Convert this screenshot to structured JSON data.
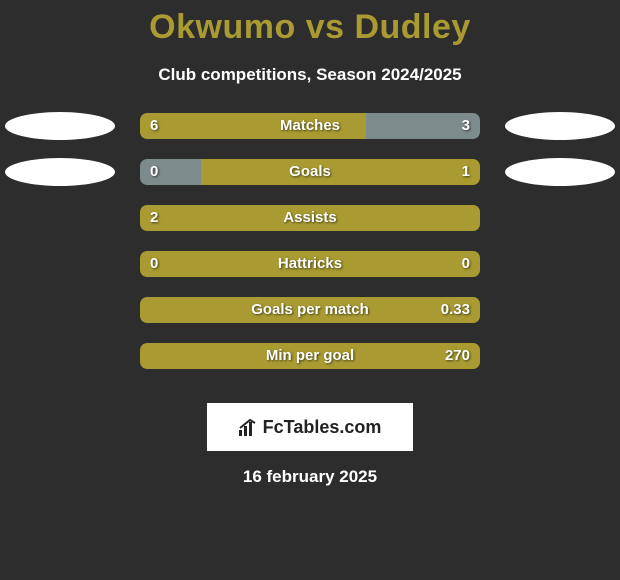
{
  "title_left": "Okwumo",
  "title_vs": "vs",
  "title_right": "Dudley",
  "subtitle": "Club competitions, Season 2024/2025",
  "date": "16 february 2025",
  "logo_text_bold": "Fc",
  "logo_text_rest": "Tables.com",
  "colors": {
    "title": "#a99b31",
    "bar_left_default": "#a99b31",
    "bar_right_default": "#7c8b8c",
    "bar_full": "#a99b31",
    "oval": "#ffffff",
    "background": "#2d2d2d",
    "text": "#ffffff"
  },
  "rows": [
    {
      "label": "Matches",
      "left_val": "6",
      "right_val": "3",
      "left_pct": 66.6,
      "right_pct": 33.4,
      "left_color": "#a99b31",
      "right_color": "#7c8b8c",
      "show_ovals": true
    },
    {
      "label": "Goals",
      "left_val": "0",
      "right_val": "1",
      "left_pct": 18,
      "right_pct": 82,
      "left_color": "#7c8b8c",
      "right_color": "#a99b31",
      "show_ovals": true
    },
    {
      "label": "Assists",
      "left_val": "2",
      "right_val": "",
      "left_pct": 100,
      "right_pct": 0,
      "left_color": "#a99b31",
      "right_color": "#a99b31",
      "show_ovals": false
    },
    {
      "label": "Hattricks",
      "left_val": "0",
      "right_val": "0",
      "left_pct": 100,
      "right_pct": 0,
      "left_color": "#a99b31",
      "right_color": "#a99b31",
      "show_ovals": false
    },
    {
      "label": "Goals per match",
      "left_val": "",
      "right_val": "0.33",
      "left_pct": 100,
      "right_pct": 0,
      "left_color": "#a99b31",
      "right_color": "#a99b31",
      "show_ovals": false
    },
    {
      "label": "Min per goal",
      "left_val": "",
      "right_val": "270",
      "left_pct": 100,
      "right_pct": 0,
      "left_color": "#a99b31",
      "right_color": "#a99b31",
      "show_ovals": false
    }
  ]
}
